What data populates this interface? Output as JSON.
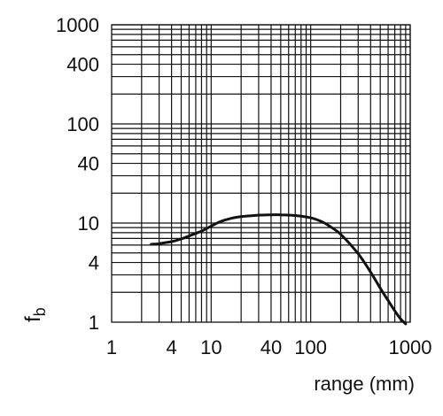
{
  "chart_data": {
    "type": "line",
    "title": "",
    "xlabel": "range (mm)",
    "ylabel": "f",
    "ylabel_subscript": "b",
    "x_scale": "log",
    "y_scale": "log",
    "xlim": [
      1,
      1000
    ],
    "ylim": [
      1,
      1000
    ],
    "grid": true,
    "x_ticks": [
      {
        "value": 1,
        "label": "1"
      },
      {
        "value": 4,
        "label": "4"
      },
      {
        "value": 10,
        "label": "10"
      },
      {
        "value": 40,
        "label": "40"
      },
      {
        "value": 100,
        "label": "100"
      },
      {
        "value": 1000,
        "label": "1000"
      }
    ],
    "y_ticks": [
      {
        "value": 1,
        "label": "1"
      },
      {
        "value": 4,
        "label": "4"
      },
      {
        "value": 10,
        "label": "10"
      },
      {
        "value": 40,
        "label": "40"
      },
      {
        "value": 100,
        "label": "100"
      },
      {
        "value": 400,
        "label": "400"
      },
      {
        "value": 1000,
        "label": "1000"
      }
    ],
    "x_gridlines": [
      2,
      3,
      4,
      5,
      6,
      7,
      8,
      9,
      10,
      20,
      30,
      40,
      50,
      60,
      70,
      80,
      90,
      100,
      200,
      300,
      400,
      500,
      600,
      700,
      800,
      900,
      1000
    ],
    "y_gridlines": [
      2,
      3,
      4,
      5,
      6,
      7,
      8,
      9,
      10,
      20,
      30,
      40,
      50,
      60,
      70,
      80,
      90,
      100,
      200,
      300,
      400,
      500,
      600,
      700,
      800,
      900,
      1000
    ],
    "series": [
      {
        "x": [
          2.5,
          3,
          4,
          5,
          6,
          8,
          10,
          12,
          15,
          20,
          30,
          40,
          50,
          70,
          100,
          130,
          150,
          200,
          300,
          400,
          500,
          600,
          700,
          800,
          900
        ],
        "y": [
          6.1,
          6.2,
          6.5,
          6.9,
          7.4,
          8.3,
          9.3,
          10.2,
          11.0,
          11.6,
          12.0,
          12.1,
          12.1,
          11.9,
          11.3,
          10.3,
          9.5,
          7.7,
          4.9,
          3.2,
          2.2,
          1.65,
          1.3,
          1.08,
          0.96
        ]
      }
    ],
    "colors": {
      "line": "#111111",
      "grid": "#111111",
      "text": "#111111"
    }
  }
}
